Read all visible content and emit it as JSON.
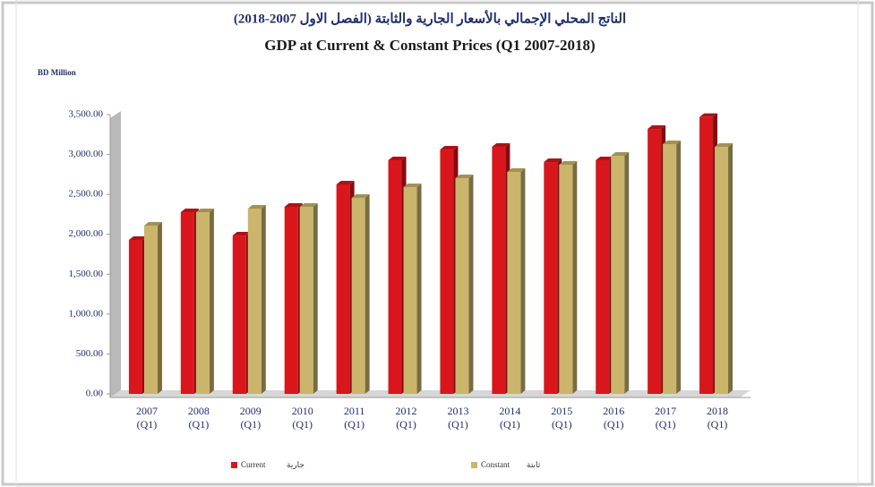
{
  "chart_data": {
    "type": "bar",
    "title_ar": "الناتج المحلي الإجمالي بالأسعار الجارية والثابتة (الفصل الاول 2007-2018)",
    "title": "GDP at Current & Constant Prices (Q1 2007-2018)",
    "y_label": "BD Million",
    "categories": [
      "2007 (Q1)",
      "2008 (Q1)",
      "2009 (Q1)",
      "2010 (Q1)",
      "2011 (Q1)",
      "2012 (Q1)",
      "2013 (Q1)",
      "2014 (Q1)",
      "2015 (Q1)",
      "2016 (Q1)",
      "2017 (Q1)",
      "2018 (Q1)"
    ],
    "series": [
      {
        "name": "Current",
        "name_ar": "جارية",
        "color": "#d9161c",
        "values": [
          1930,
          2277,
          1985,
          2345,
          2625,
          2928,
          3062,
          3096,
          2905,
          2928,
          3320,
          3470
        ]
      },
      {
        "name": "Constant",
        "name_ar": "ثابتة",
        "color": "#cbb46c",
        "values": [
          2109,
          2277,
          2322,
          2345,
          2457,
          2591,
          2703,
          2782,
          2872,
          2984,
          3130,
          3096
        ]
      }
    ],
    "ylim": [
      0,
      3500
    ],
    "yticks": [
      {
        "value": 0,
        "label": "0.00"
      },
      {
        "value": 500,
        "label": "500.00"
      },
      {
        "value": 1000,
        "label": "1,000.00"
      },
      {
        "value": 1500,
        "label": "1,500.00"
      },
      {
        "value": 2000,
        "label": "2,000.00"
      },
      {
        "value": 2500,
        "label": "2,500.00"
      },
      {
        "value": 3000,
        "label": "3,000.00"
      },
      {
        "value": 3500,
        "label": "3,500.00"
      }
    ]
  }
}
